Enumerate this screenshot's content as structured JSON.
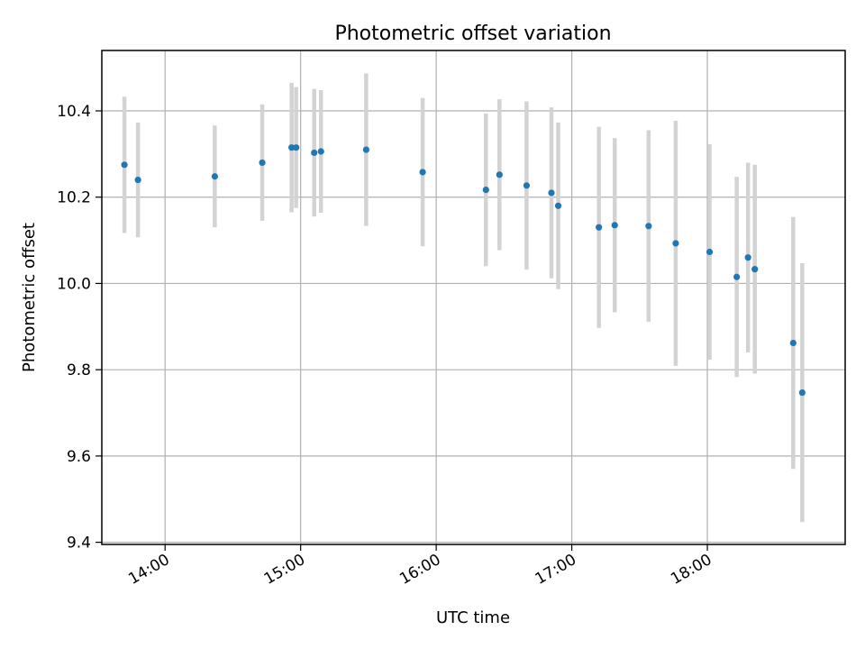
{
  "chart_data": {
    "type": "scatter",
    "title": "Photometric offset variation",
    "xlabel": "UTC time",
    "ylabel": "Photometric offset",
    "x_ticks": [
      "14:00",
      "15:00",
      "16:00",
      "17:00",
      "18:00"
    ],
    "y_ticks": [
      "9.4",
      "9.6",
      "9.8",
      "10.0",
      "10.2",
      "10.4"
    ],
    "xlim": [
      "13:32",
      "19:01"
    ],
    "ylim": [
      9.395,
      10.54
    ],
    "grid": true,
    "marker_color": "#1f77b4",
    "errorbar_color": "#d3d3d3",
    "points": [
      {
        "x": "13:42",
        "y": 10.275,
        "err": 0.158
      },
      {
        "x": "13:48",
        "y": 10.24,
        "err": 0.133
      },
      {
        "x": "14:22",
        "y": 10.248,
        "err": 0.118
      },
      {
        "x": "14:43",
        "y": 10.28,
        "err": 0.135
      },
      {
        "x": "14:56",
        "y": 10.315,
        "err": 0.15
      },
      {
        "x": "14:58",
        "y": 10.315,
        "err": 0.14
      },
      {
        "x": "15:06",
        "y": 10.303,
        "err": 0.148
      },
      {
        "x": "15:09",
        "y": 10.306,
        "err": 0.142
      },
      {
        "x": "15:29",
        "y": 10.31,
        "err": 0.177
      },
      {
        "x": "15:54",
        "y": 10.258,
        "err": 0.172
      },
      {
        "x": "16:22",
        "y": 10.217,
        "err": 0.177
      },
      {
        "x": "16:28",
        "y": 10.252,
        "err": 0.175
      },
      {
        "x": "16:40",
        "y": 10.227,
        "err": 0.195
      },
      {
        "x": "16:51",
        "y": 10.21,
        "err": 0.198
      },
      {
        "x": "16:54",
        "y": 10.18,
        "err": 0.193
      },
      {
        "x": "17:12",
        "y": 10.13,
        "err": 0.233
      },
      {
        "x": "17:19",
        "y": 10.135,
        "err": 0.202
      },
      {
        "x": "17:34",
        "y": 10.133,
        "err": 0.222
      },
      {
        "x": "17:46",
        "y": 10.093,
        "err": 0.284
      },
      {
        "x": "18:01",
        "y": 10.073,
        "err": 0.25
      },
      {
        "x": "18:13",
        "y": 10.015,
        "err": 0.232
      },
      {
        "x": "18:18",
        "y": 10.06,
        "err": 0.22
      },
      {
        "x": "18:21",
        "y": 10.033,
        "err": 0.242
      },
      {
        "x": "18:38",
        "y": 9.862,
        "err": 0.292
      },
      {
        "x": "18:42",
        "y": 9.747,
        "err": 0.3
      }
    ]
  }
}
